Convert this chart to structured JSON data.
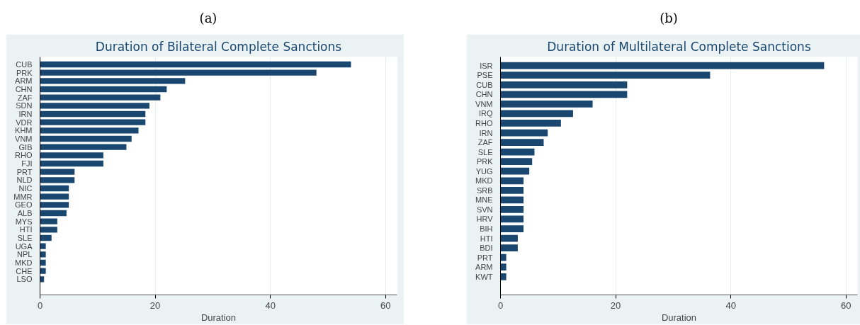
{
  "chart_data": [
    {
      "type": "bar",
      "orientation": "horizontal",
      "annotations": [
        "(a)"
      ],
      "title": "Duration of Bilateral Complete Sanctions",
      "xlabel": "Duration",
      "categories": [
        "CUB",
        "PRK",
        "ARM",
        "CHN",
        "ZAF",
        "SDN",
        "IRN",
        "VDR",
        "KHM",
        "VNM",
        "GIB",
        "RHO",
        "FJI",
        "PRT",
        "NLD",
        "NIC",
        "MMR",
        "GEO",
        "ALB",
        "MYS",
        "HTI",
        "SLE",
        "UGA",
        "NPL",
        "MKD",
        "CHE",
        "LSO"
      ],
      "values": [
        54,
        48,
        25.2,
        22,
        20.9,
        19,
        18.3,
        18.3,
        17.1,
        15.9,
        15,
        11,
        11,
        6,
        6,
        5,
        5,
        5,
        4.6,
        3,
        3,
        2,
        1,
        1,
        1,
        1,
        0.7
      ],
      "color": "#1a476f",
      "xlim": [
        0,
        62
      ],
      "xticks": [
        0,
        20,
        40,
        60
      ],
      "grid": "x"
    },
    {
      "type": "bar",
      "orientation": "horizontal",
      "annotations": [
        "(b)"
      ],
      "title": "Duration of Multilateral Complete Sanctions",
      "xlabel": "Duration",
      "categories": [
        "ISR",
        "PSE",
        "CUB",
        "CHN",
        "VNM",
        "IRQ",
        "RHO",
        "IRN",
        "ZAF",
        "SLE",
        "PRK",
        "YUG",
        "MKD",
        "SRB",
        "MNE",
        "SVN",
        "HRV",
        "BIH",
        "HTI",
        "BDI",
        "PRT",
        "ARM",
        "KWT"
      ],
      "values": [
        56.2,
        36.4,
        22,
        22,
        16,
        12.6,
        10.5,
        8.2,
        7.5,
        5.9,
        5.5,
        5,
        4,
        4,
        4,
        4,
        4,
        4,
        3,
        3,
        1,
        1,
        1
      ],
      "color": "#1a476f",
      "xlim": [
        0,
        62
      ],
      "xticks": [
        0,
        20,
        40,
        60
      ],
      "grid": "x"
    }
  ]
}
